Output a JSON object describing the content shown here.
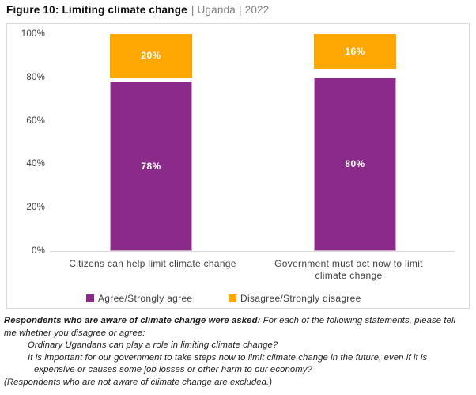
{
  "title": {
    "main": "Figure 10: Limiting climate change",
    "context": "| Uganda | 2022"
  },
  "chart_data": {
    "type": "bar",
    "stacked": true,
    "title": "Figure 10: Limiting climate change | Uganda | 2022",
    "categories": [
      "Citizens can help limit climate change",
      "Government must act now to limit climate change"
    ],
    "series": [
      {
        "name": "Agree/Strongly agree",
        "color": "#8a2b8a",
        "anchor": "bottom",
        "values": [
          78,
          80
        ]
      },
      {
        "name": "Disagree/Strongly disagree",
        "color": "#ffa702",
        "anchor": "top",
        "values": [
          20,
          16
        ]
      }
    ],
    "value_labels": [
      [
        "78%",
        "80%"
      ],
      [
        "20%",
        "16%"
      ]
    ],
    "ylim": [
      0,
      100
    ],
    "yticks": [
      0,
      20,
      40,
      60,
      80,
      100
    ],
    "ytick_labels": [
      "0%",
      "20%",
      "40%",
      "60%",
      "80%",
      "100%"
    ],
    "grid": false,
    "legend_position": "bottom"
  },
  "colors": {
    "agree": "#8a2b8a",
    "disagree": "#ffa702",
    "axis_line": "#d9d9d9",
    "chart_border": "#d9d9d9",
    "tick_text": "#404040",
    "title_context": "#7f7f7f"
  },
  "footnote": {
    "prompt_bold": "Respondents who are aware of climate change were asked:",
    "prompt_rest": "For each of the following statements, please tell me whether you disagree or agree:",
    "statements": [
      "Ordinary Ugandans can play a role in limiting climate change?",
      "It is important for our government to take steps now to limit climate change in the future, even if it is expensive or causes some job losses or other harm to our economy?"
    ],
    "exclusion": "(Respondents who are not aware of climate change are excluded.)"
  }
}
